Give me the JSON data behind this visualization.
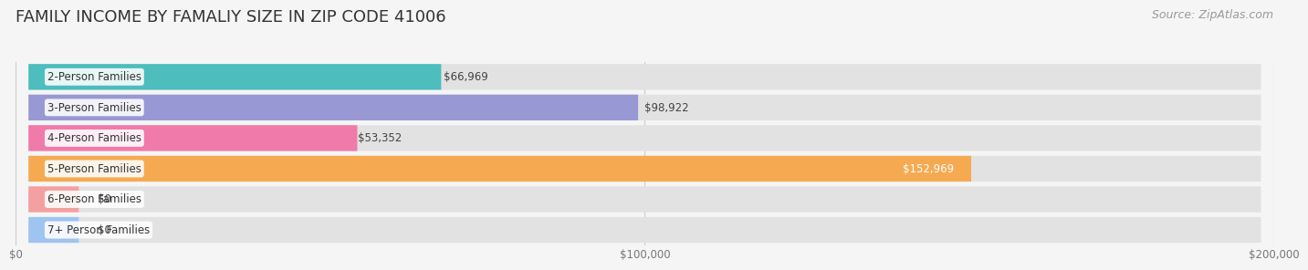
{
  "title": "FAMILY INCOME BY FAMALIY SIZE IN ZIP CODE 41006",
  "source": "Source: ZipAtlas.com",
  "categories": [
    "2-Person Families",
    "3-Person Families",
    "4-Person Families",
    "5-Person Families",
    "6-Person Families",
    "7+ Person Families"
  ],
  "values": [
    66969,
    98922,
    53352,
    152969,
    0,
    0
  ],
  "bar_colors": [
    "#4dbdbd",
    "#9898d4",
    "#f07aaa",
    "#f5aa52",
    "#f5a0a0",
    "#a0c4f0"
  ],
  "background_color": "#f5f5f5",
  "bar_bg_color": "#e2e2e2",
  "xlim": [
    0,
    200000
  ],
  "tick_values": [
    0,
    100000,
    200000
  ],
  "tick_labels": [
    "$0",
    "$100,000",
    "$200,000"
  ],
  "title_fontsize": 13,
  "source_fontsize": 9,
  "label_fontsize": 8.5,
  "bar_label_fontsize": 8.5,
  "value_labels": [
    "$66,969",
    "$98,922",
    "$53,352",
    "$152,969",
    "$0",
    "$0"
  ],
  "value_inside": [
    false,
    false,
    false,
    true,
    false,
    false
  ]
}
